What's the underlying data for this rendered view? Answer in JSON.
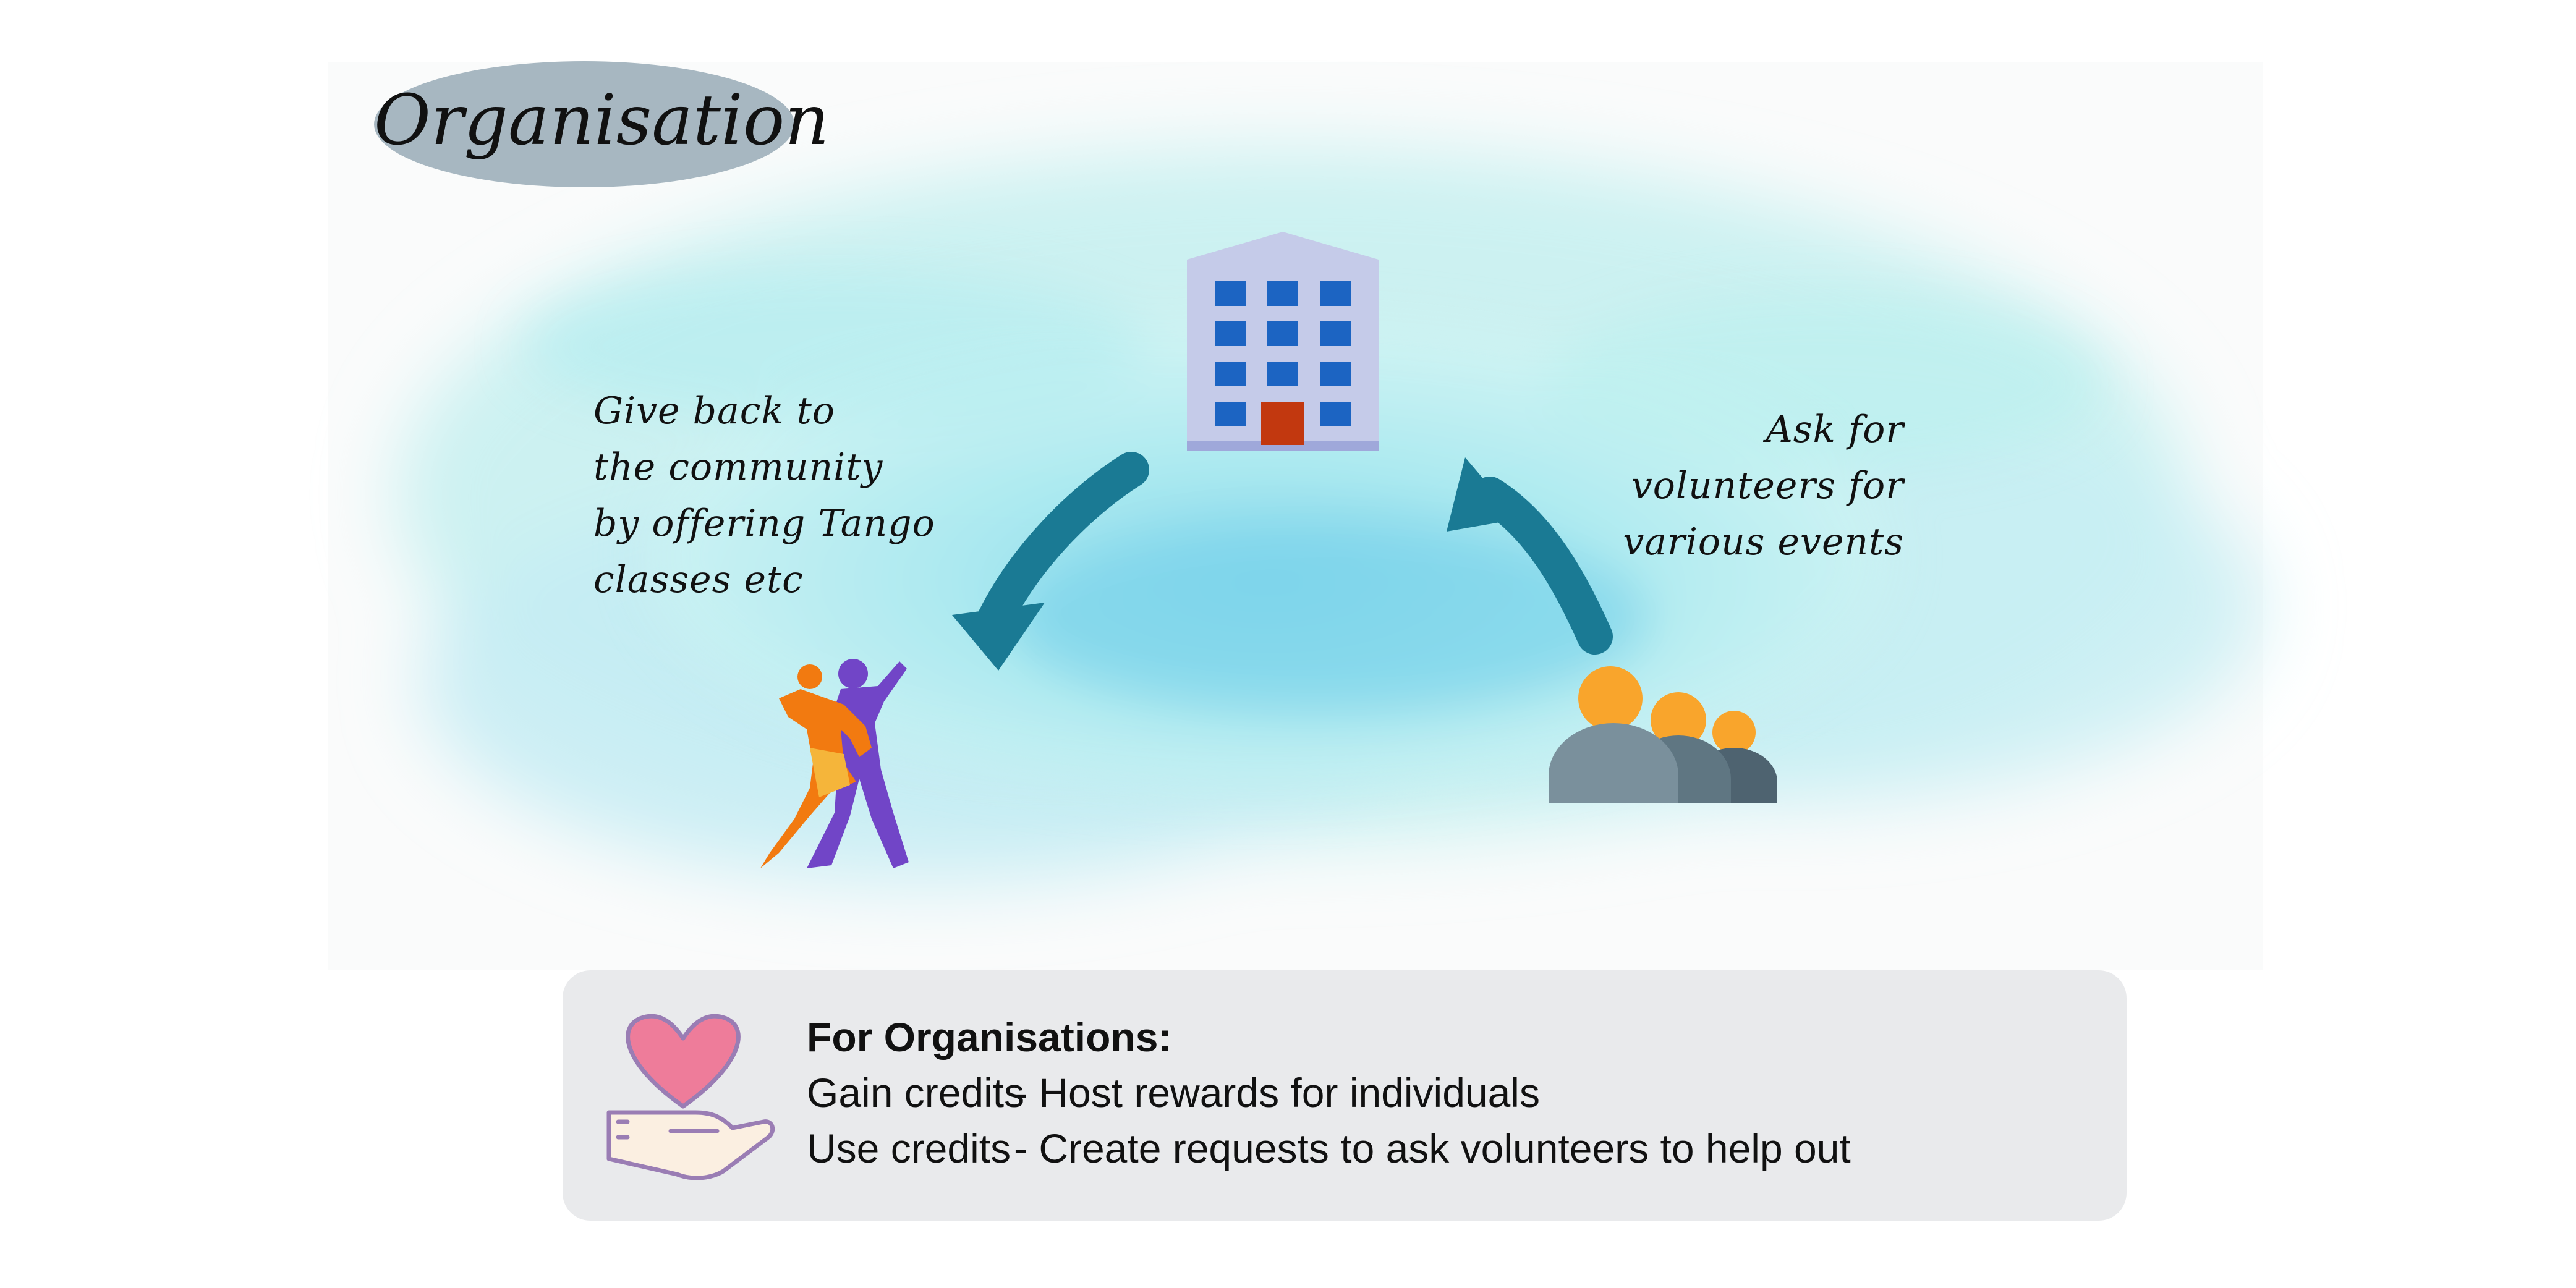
{
  "title": "Organisation",
  "left_note": {
    "lines": [
      "Give back to",
      "the community",
      "by offering Tango",
      "classes etc"
    ]
  },
  "right_note": {
    "lines": [
      "Ask for",
      "volunteers for",
      "various events"
    ]
  },
  "info": {
    "heading": "For Organisations:",
    "rows": [
      {
        "label": "Gain credits",
        "description": "- Host rewards for individuals"
      },
      {
        "label": "Use credits",
        "description": "- Create requests to ask volunteers to help out"
      }
    ]
  },
  "icons": {
    "center": "building-icon",
    "left": "tango-dancers-icon",
    "right": "group-of-people-icon",
    "info": "heart-in-hand-icon"
  },
  "colors": {
    "arrow": "#1a7a94",
    "title_oval": "#a7b7c1",
    "wash_light": "#c9f3f1",
    "wash_mid": "#86d8ea",
    "info_box": "#e9eaec",
    "building_facade": "#c5cbe9",
    "building_windows": "#1c64c2",
    "building_door": "#c2380f",
    "people_heads": "#f9a52c",
    "people_bodies": "#6f8592",
    "heart": "#ee7c9a",
    "hand_outline": "#9a7db4",
    "dancer_orange": "#f27a10",
    "dancer_purple": "#7145c7"
  }
}
